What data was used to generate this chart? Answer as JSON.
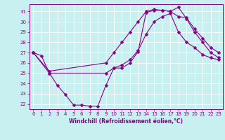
{
  "xlabel": "Windchill (Refroidissement éolien,°C)",
  "xlim": [
    -0.5,
    23.5
  ],
  "ylim": [
    21.5,
    31.7
  ],
  "yticks": [
    22,
    23,
    24,
    25,
    26,
    27,
    28,
    29,
    30,
    31
  ],
  "xticks": [
    0,
    1,
    2,
    3,
    4,
    5,
    6,
    7,
    8,
    9,
    10,
    11,
    12,
    13,
    14,
    15,
    16,
    17,
    18,
    19,
    20,
    21,
    22,
    23
  ],
  "bg_color": "#c8f0f0",
  "line_color": "#880088",
  "grid_color": "#aadddd",
  "line1_x": [
    0,
    1,
    2,
    3,
    4,
    5,
    6,
    7,
    8,
    9,
    10,
    11,
    12,
    13,
    14,
    15,
    16,
    17,
    18,
    19,
    20,
    21,
    22,
    23
  ],
  "line1_y": [
    27.0,
    26.7,
    25.0,
    23.8,
    22.9,
    21.9,
    21.9,
    21.8,
    21.8,
    23.8,
    25.5,
    25.5,
    26.0,
    27.1,
    30.9,
    31.1,
    31.1,
    31.0,
    31.4,
    30.3,
    29.0,
    28.0,
    27.0,
    26.5
  ],
  "line2_x": [
    0,
    2,
    9,
    10,
    11,
    12,
    13,
    14,
    15,
    16,
    17,
    18,
    19,
    20,
    21,
    22,
    23
  ],
  "line2_y": [
    27.0,
    25.0,
    25.0,
    25.5,
    25.8,
    26.3,
    27.2,
    28.8,
    30.0,
    30.5,
    30.8,
    29.0,
    28.0,
    27.5,
    26.8,
    26.5,
    26.3
  ],
  "line3_x": [
    0,
    2,
    9,
    10,
    11,
    12,
    13,
    14,
    15,
    16,
    17,
    18,
    19,
    20,
    21,
    22,
    23
  ],
  "line3_y": [
    27.0,
    25.2,
    26.0,
    27.0,
    28.0,
    29.0,
    30.0,
    31.0,
    31.2,
    31.1,
    31.0,
    30.5,
    30.4,
    29.3,
    28.4,
    27.5,
    27.0
  ]
}
